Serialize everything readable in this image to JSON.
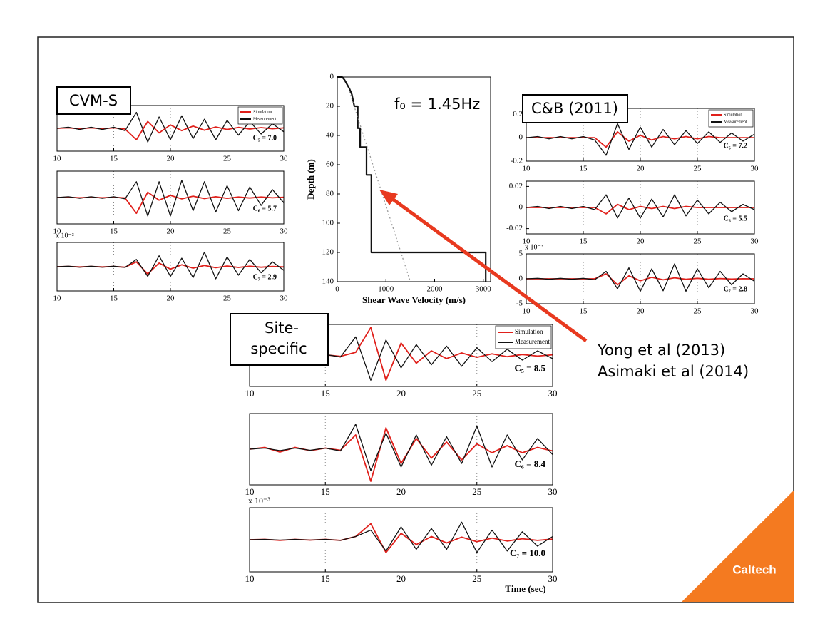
{
  "slide": {
    "cvm_label": "CVM-S",
    "cb_label": "C&B (2011)",
    "site_label_1": "Site-",
    "site_label_2": "specific",
    "f0_label": "f₀ = 1.45Hz",
    "ref_1": "Yong et al (2013)",
    "ref_2": "Asimaki et al (2014)",
    "logo": "Caltech"
  },
  "chart_data": [
    {
      "type": "line",
      "x": [
        10,
        11,
        12,
        13,
        14,
        15,
        16,
        17,
        18,
        19,
        20,
        21,
        22,
        23,
        24,
        25,
        26,
        27,
        28,
        29,
        30
      ],
      "xlim": [
        10,
        30
      ],
      "xticks": [
        10,
        15,
        20,
        25,
        30
      ],
      "ylim": [
        -1,
        1
      ],
      "grid": true,
      "legend": "upper right",
      "annotation": "C₅ = 7.0",
      "series": [
        {
          "name": "Simulation",
          "color": "#e0201b",
          "values": [
            0,
            0.02,
            -0.02,
            0.02,
            -0.02,
            0.02,
            -0.03,
            -0.5,
            0.3,
            -0.2,
            0.15,
            -0.1,
            0.1,
            -0.08,
            0.06,
            -0.05,
            0.04,
            -0.03,
            0.03,
            -0.02,
            0.02
          ]
        },
        {
          "name": "Measurement",
          "color": "#111111",
          "values": [
            0,
            0.05,
            -0.05,
            0.05,
            -0.05,
            0.05,
            -0.1,
            0.7,
            -0.6,
            0.5,
            -0.5,
            0.55,
            -0.45,
            0.4,
            -0.5,
            0.35,
            -0.3,
            0.3,
            -0.25,
            0.2,
            -0.15
          ]
        }
      ]
    },
    {
      "type": "line",
      "x": [
        10,
        11,
        12,
        13,
        14,
        15,
        16,
        17,
        18,
        19,
        20,
        21,
        22,
        23,
        24,
        25,
        26,
        27,
        28,
        29,
        30
      ],
      "xlim": [
        10,
        30
      ],
      "xticks": [
        10,
        15,
        20,
        25,
        30
      ],
      "ylim": [
        -1,
        1
      ],
      "grid": true,
      "annotation": "C₆ = 5.7",
      "series": [
        {
          "color": "#e0201b",
          "values": [
            0,
            0.01,
            -0.01,
            0.01,
            -0.01,
            0.01,
            -0.02,
            -0.6,
            0.2,
            -0.1,
            0.08,
            -0.05,
            0.05,
            -0.04,
            0.03,
            -0.03,
            0.02,
            -0.02,
            0.02,
            -0.01,
            0.01
          ]
        },
        {
          "color": "#111111",
          "values": [
            0,
            0.03,
            -0.03,
            0.03,
            -0.03,
            0.03,
            -0.05,
            0.6,
            -0.7,
            0.6,
            -0.7,
            0.65,
            -0.5,
            0.6,
            -0.55,
            0.45,
            -0.5,
            0.4,
            -0.3,
            0.3,
            -0.2
          ]
        }
      ]
    },
    {
      "type": "line",
      "x": [
        10,
        11,
        12,
        13,
        14,
        15,
        16,
        17,
        18,
        19,
        20,
        21,
        22,
        23,
        24,
        25,
        26,
        27,
        28,
        29,
        30
      ],
      "xlim": [
        10,
        30
      ],
      "xticks": [
        10,
        15,
        20,
        25,
        30
      ],
      "ylim": [
        -1,
        1
      ],
      "grid": true,
      "annotation": "C₇ = 2.9",
      "y_multiplier": "x 10⁻³",
      "series": [
        {
          "color": "#e0201b",
          "values": [
            0,
            0.01,
            -0.01,
            0.01,
            -0.01,
            0.01,
            -0.02,
            0.2,
            -0.3,
            0.15,
            -0.1,
            0.08,
            -0.06,
            0.05,
            -0.04,
            0.03,
            -0.03,
            0.02,
            -0.02,
            0.01,
            -0.01
          ]
        },
        {
          "color": "#111111",
          "values": [
            0,
            0.02,
            -0.02,
            0.02,
            -0.02,
            0.02,
            -0.03,
            0.3,
            -0.4,
            0.45,
            -0.4,
            0.35,
            -0.45,
            0.6,
            -0.5,
            0.4,
            -0.35,
            0.3,
            -0.25,
            0.2,
            -0.15
          ]
        }
      ]
    },
    {
      "type": "line",
      "x": [
        10,
        11,
        12,
        13,
        14,
        15,
        16,
        17,
        18,
        19,
        20,
        21,
        22,
        23,
        24,
        25,
        26,
        27,
        28,
        29,
        30
      ],
      "xlim": [
        10,
        30
      ],
      "xticks": [
        10,
        15,
        20,
        25,
        30
      ],
      "ylim": [
        -0.2,
        0.25
      ],
      "yticks": [
        -0.2,
        0,
        0.2
      ],
      "grid": true,
      "legend": "upper right",
      "annotation": "C₅ = 7.2",
      "series": [
        {
          "name": "Simulation",
          "color": "#e0201b",
          "values": [
            0,
            0,
            0,
            0,
            0,
            0,
            0,
            -0.08,
            0.05,
            -0.03,
            0.02,
            -0.02,
            0.01,
            -0.01,
            0.01,
            -0.01,
            0.01,
            0,
            0,
            0,
            0
          ]
        },
        {
          "name": "Measurement",
          "color": "#111111",
          "values": [
            0,
            0.01,
            -0.01,
            0.01,
            -0.01,
            0.01,
            -0.02,
            -0.15,
            0.12,
            -0.1,
            0.09,
            -0.08,
            0.07,
            -0.06,
            0.06,
            -0.05,
            0.05,
            -0.04,
            0.04,
            -0.03,
            0.03
          ]
        }
      ]
    },
    {
      "type": "line",
      "x": [
        10,
        11,
        12,
        13,
        14,
        15,
        16,
        17,
        18,
        19,
        20,
        21,
        22,
        23,
        24,
        25,
        26,
        27,
        28,
        29,
        30
      ],
      "xlim": [
        10,
        30
      ],
      "xticks": [
        10,
        15,
        20,
        25,
        30
      ],
      "ylim": [
        -0.025,
        0.025
      ],
      "yticks": [
        -0.02,
        0,
        0.02
      ],
      "grid": true,
      "annotation": "C₆ = 5.5",
      "series": [
        {
          "color": "#e0201b",
          "values": [
            0,
            0,
            0,
            0,
            0,
            0,
            0,
            -0.006,
            0.003,
            -0.002,
            0.001,
            -0.001,
            0.001,
            -0.001,
            0.001,
            0,
            0,
            0,
            0,
            0,
            0
          ]
        },
        {
          "color": "#111111",
          "values": [
            0,
            0.001,
            -0.001,
            0.001,
            -0.001,
            0.001,
            -0.002,
            0.012,
            -0.01,
            0.009,
            -0.01,
            0.008,
            -0.009,
            0.012,
            -0.008,
            0.007,
            -0.006,
            0.005,
            -0.004,
            0.003,
            -0.002
          ]
        }
      ]
    },
    {
      "type": "line",
      "x": [
        10,
        11,
        12,
        13,
        14,
        15,
        16,
        17,
        18,
        19,
        20,
        21,
        22,
        23,
        24,
        25,
        26,
        27,
        28,
        29,
        30
      ],
      "xlim": [
        10,
        30
      ],
      "xticks": [
        10,
        15,
        20,
        25,
        30
      ],
      "ylim": [
        -5,
        5
      ],
      "yticks": [
        -5,
        0,
        5
      ],
      "grid": true,
      "annotation": "C₇ = 2.8",
      "y_multiplier": "x 10⁻³",
      "series": [
        {
          "color": "#e0201b",
          "values": [
            0,
            0,
            0,
            0,
            0,
            0,
            0,
            1,
            -1.2,
            0.6,
            -0.4,
            0.3,
            -0.2,
            0.2,
            -0.1,
            0.1,
            -0.1,
            0.05,
            -0.05,
            0.02,
            0
          ]
        },
        {
          "color": "#111111",
          "values": [
            0,
            0.1,
            -0.1,
            0.1,
            -0.1,
            0.1,
            -0.2,
            1.5,
            -2,
            2.2,
            -2.5,
            2,
            -2.4,
            3,
            -2.5,
            2,
            -1.8,
            1.5,
            -1.2,
            1,
            -0.5
          ]
        }
      ]
    },
    {
      "type": "line",
      "x": [
        10,
        11,
        12,
        13,
        14,
        15,
        16,
        17,
        18,
        19,
        20,
        21,
        22,
        23,
        24,
        25,
        26,
        27,
        28,
        29,
        30
      ],
      "xlim": [
        10,
        30
      ],
      "xticks": [
        10,
        15,
        20,
        25,
        30
      ],
      "ylim": [
        -1,
        1
      ],
      "grid": true,
      "legend": "upper right",
      "annotation": "C₅ = 8.5",
      "series": [
        {
          "name": "Simulation",
          "color": "#e0201b",
          "values": [
            0,
            0.02,
            -0.02,
            0.02,
            -0.02,
            0.02,
            -0.03,
            0.1,
            0.9,
            -0.8,
            0.4,
            -0.25,
            0.15,
            -0.1,
            0.08,
            -0.06,
            0.05,
            -0.04,
            0.03,
            -0.02,
            0.02
          ]
        },
        {
          "name": "Measurement",
          "color": "#111111",
          "values": [
            0,
            0.02,
            -0.03,
            0.02,
            -0.03,
            0.03,
            -0.05,
            0.6,
            -0.8,
            0.5,
            -0.4,
            0.35,
            -0.3,
            0.3,
            -0.35,
            0.25,
            -0.2,
            0.2,
            -0.15,
            0.15,
            -0.1
          ]
        }
      ]
    },
    {
      "type": "line",
      "x": [
        10,
        11,
        12,
        13,
        14,
        15,
        16,
        17,
        18,
        19,
        20,
        21,
        22,
        23,
        24,
        25,
        26,
        27,
        28,
        29,
        30
      ],
      "xlim": [
        10,
        30
      ],
      "xticks": [
        10,
        15,
        20,
        25,
        30
      ],
      "ylim": [
        -1,
        1
      ],
      "grid": true,
      "annotation": "C₆ = 8.4",
      "series": [
        {
          "color": "#e0201b",
          "values": [
            0,
            0.05,
            -0.08,
            0.05,
            -0.04,
            0.03,
            -0.03,
            0.4,
            -0.9,
            0.6,
            -0.4,
            0.3,
            -0.25,
            0.2,
            -0.3,
            0.15,
            -0.1,
            0.1,
            -0.1,
            0.05,
            -0.05
          ]
        },
        {
          "color": "#111111",
          "values": [
            0,
            0.03,
            -0.04,
            0.03,
            -0.03,
            0.03,
            -0.05,
            0.7,
            -0.6,
            0.45,
            -0.5,
            0.4,
            -0.45,
            0.35,
            -0.4,
            0.65,
            -0.5,
            0.4,
            -0.3,
            0.3,
            -0.15
          ]
        }
      ]
    },
    {
      "type": "line",
      "x": [
        10,
        11,
        12,
        13,
        14,
        15,
        16,
        17,
        18,
        19,
        20,
        21,
        22,
        23,
        24,
        25,
        26,
        27,
        28,
        29,
        30
      ],
      "xlim": [
        10,
        30
      ],
      "xticks": [
        10,
        15,
        20,
        25,
        30
      ],
      "ylim": [
        -1,
        1
      ],
      "grid": true,
      "annotation": "C₇ = 10.0",
      "y_multiplier": "x 10⁻³",
      "xlabel": "Time (sec)",
      "series": [
        {
          "color": "#e0201b",
          "values": [
            0,
            0.01,
            -0.02,
            0.01,
            -0.01,
            0.01,
            -0.02,
            0.1,
            0.5,
            -0.4,
            0.2,
            -0.15,
            0.1,
            -0.1,
            0.08,
            -0.06,
            0.05,
            -0.04,
            0.03,
            -0.02,
            0.02
          ]
        },
        {
          "color": "#111111",
          "values": [
            0,
            0.01,
            -0.01,
            0.01,
            -0.01,
            0.01,
            -0.02,
            0.1,
            0.3,
            -0.35,
            0.4,
            -0.3,
            0.35,
            -0.3,
            0.55,
            -0.4,
            0.3,
            -0.35,
            0.25,
            -0.2,
            0.1
          ]
        }
      ]
    },
    {
      "type": "line",
      "xlim": [
        0,
        3150
      ],
      "xticks": [
        0,
        1000,
        2000,
        3000
      ],
      "ylim": [
        0,
        140
      ],
      "yticks": [
        0,
        20,
        40,
        60,
        80,
        100,
        120,
        140
      ],
      "y_inverted": true,
      "xlabel": "Shear Wave Velocity (m/s)",
      "ylabel": "Depth (m)",
      "series": [
        {
          "color": "#111111",
          "x": [
            0,
            100,
            150,
            200,
            250,
            300,
            350,
            420,
            420,
            470,
            470,
            600,
            600,
            700,
            700,
            3050,
            3050
          ],
          "values": [
            0,
            0,
            2,
            5,
            8,
            12,
            20,
            20,
            35,
            35,
            48,
            48,
            67,
            67,
            120,
            120,
            140
          ]
        },
        {
          "color": "#999999",
          "linestyle": "dotted",
          "x": [
            250,
            1500
          ],
          "values": [
            10,
            140
          ]
        }
      ]
    }
  ]
}
